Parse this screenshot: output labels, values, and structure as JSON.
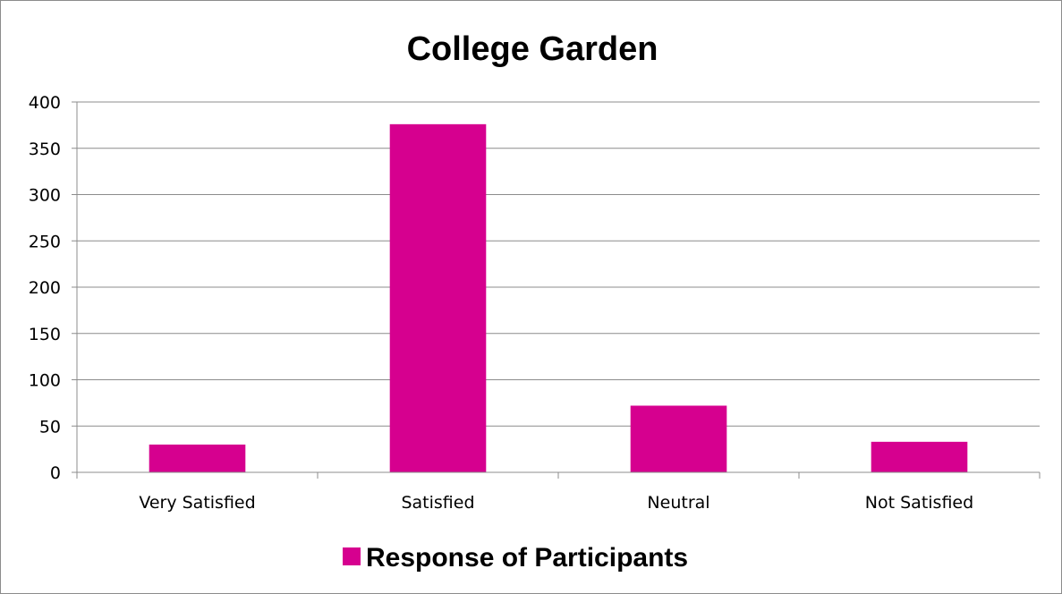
{
  "chart_data": {
    "type": "bar",
    "title": "College Garden",
    "categories": [
      "Very Satisfied",
      "Satisfied",
      "Neutral",
      "Not Satisfied"
    ],
    "series": [
      {
        "name": "Response of Participants",
        "values": [
          30,
          376,
          72,
          33
        ],
        "color": "#d6008f"
      }
    ],
    "ylim": [
      0,
      400
    ],
    "yticks": [
      0,
      50,
      100,
      150,
      200,
      250,
      300,
      350,
      400
    ],
    "xlabel": "",
    "ylabel": "",
    "grid": true,
    "legend": "bottom"
  }
}
